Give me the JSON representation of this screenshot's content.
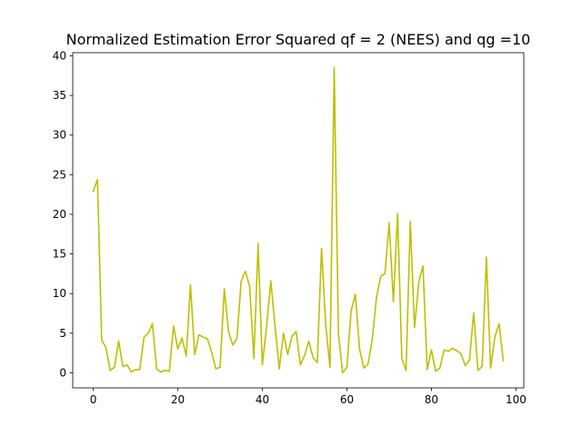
{
  "chart_data": {
    "type": "line",
    "title": "Normalized Estimation Error Squared qf = 2 (NEES) and qg =10",
    "xlabel": "",
    "ylabel": "",
    "xlim": [
      -4.85,
      101.85
    ],
    "ylim": [
      -1.9,
      40.4
    ],
    "xticks": [
      0,
      20,
      40,
      60,
      80,
      100
    ],
    "yticks": [
      0,
      5,
      10,
      15,
      20,
      25,
      30,
      35,
      40
    ],
    "grid": false,
    "series": [
      {
        "color": "#bfbf00",
        "x": [
          0,
          1,
          2,
          3,
          4,
          5,
          6,
          7,
          8,
          9,
          10,
          11,
          12,
          13,
          14,
          15,
          16,
          17,
          18,
          19,
          20,
          21,
          22,
          23,
          24,
          25,
          26,
          27,
          28,
          29,
          30,
          31,
          32,
          33,
          34,
          35,
          36,
          37,
          38,
          39,
          40,
          41,
          42,
          43,
          44,
          45,
          46,
          47,
          48,
          49,
          50,
          51,
          52,
          53,
          54,
          55,
          56,
          57,
          58,
          59,
          60,
          61,
          62,
          63,
          64,
          65,
          66,
          67,
          68,
          69,
          70,
          71,
          72,
          73,
          74,
          75,
          76,
          77,
          78,
          79,
          80,
          81,
          82,
          83,
          84,
          85,
          86,
          87,
          88,
          89,
          90,
          91,
          92,
          93,
          94,
          95,
          96,
          97
        ],
        "values": [
          22.9,
          24.4,
          4.1,
          3.2,
          0.3,
          0.7,
          4.0,
          0.8,
          1.0,
          0.1,
          0.4,
          0.4,
          4.5,
          5.0,
          6.2,
          0.5,
          0.1,
          0.3,
          0.2,
          5.9,
          3.0,
          4.4,
          2.1,
          11.1,
          2.3,
          4.8,
          4.5,
          4.3,
          2.6,
          0.5,
          0.7,
          10.6,
          5.2,
          3.5,
          4.4,
          11.6,
          12.8,
          10.9,
          1.8,
          16.3,
          1.0,
          5.8,
          11.6,
          5.9,
          0.5,
          5.0,
          2.3,
          4.6,
          5.2,
          1.0,
          2.2,
          4.0,
          1.9,
          1.3,
          15.7,
          6.0,
          0.7,
          38.5,
          4.9,
          0.0,
          0.7,
          7.8,
          9.9,
          3.0,
          0.6,
          1.1,
          4.2,
          9.5,
          12.2,
          12.5,
          18.9,
          9.0,
          20.1,
          1.8,
          0.3,
          19.1,
          5.7,
          11.4,
          13.5,
          0.4,
          2.9,
          0.2,
          0.6,
          2.9,
          2.7,
          3.1,
          2.8,
          2.4,
          0.9,
          1.6,
          7.6,
          0.3,
          0.8,
          14.6,
          0.6,
          4.5,
          6.2,
          1.5
        ]
      }
    ]
  }
}
